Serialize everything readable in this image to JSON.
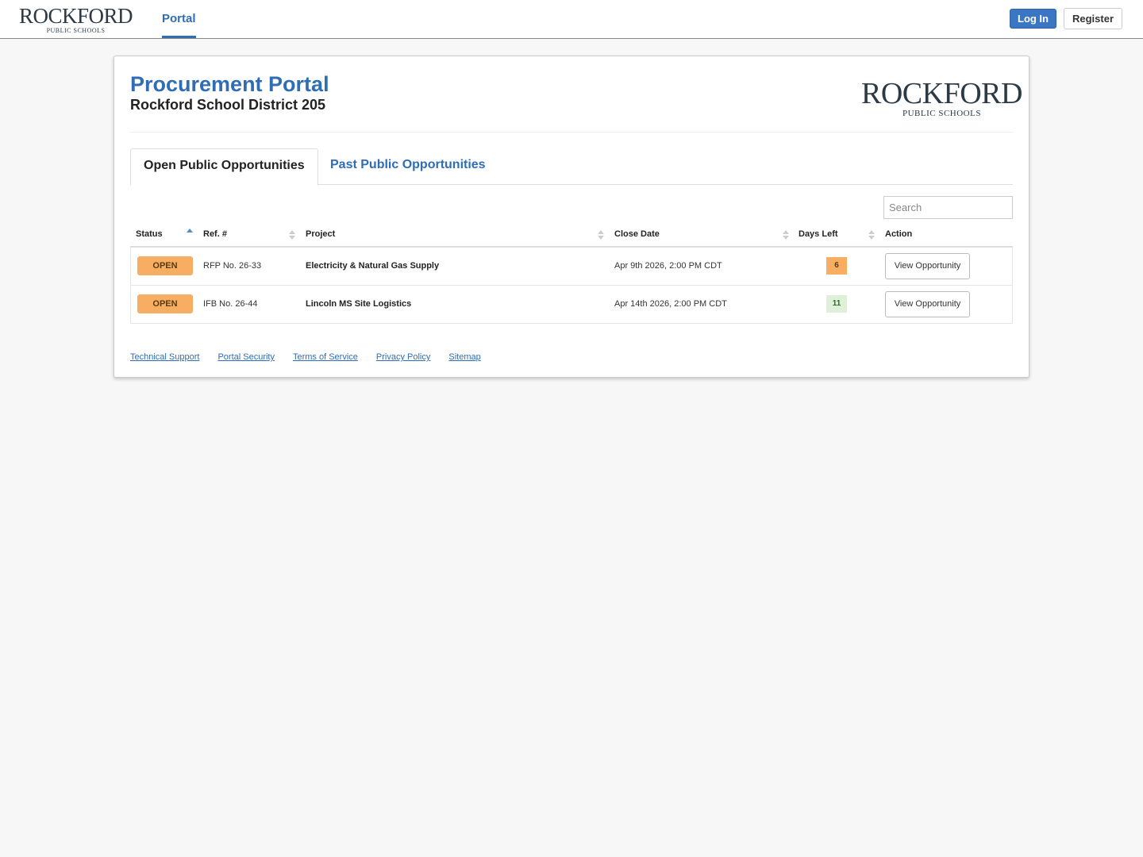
{
  "header": {
    "logo": {
      "name": "ROCKFORD",
      "tagline": "PUBLIC SCHOOLS"
    },
    "nav": [
      {
        "label": "Portal",
        "active": true
      }
    ],
    "login_label": "Log In",
    "register_label": "Register"
  },
  "page": {
    "title": "Procurement Portal",
    "subtitle": "Rockford School District 205",
    "tabs": [
      {
        "label": "Open Public Opportunities",
        "active": true
      },
      {
        "label": "Past Public Opportunities",
        "active": false
      }
    ],
    "search_placeholder": "Search"
  },
  "table": {
    "columns": [
      "Status",
      "Ref. #",
      "Project",
      "Close Date",
      "Days Left",
      "Action"
    ],
    "sorted_column": "Status",
    "rows": [
      {
        "status": "OPEN",
        "ref": "RFP No. 26-33",
        "project": "Electricity & Natural Gas Supply",
        "close_date": "Apr 9th 2026, 2:00 PM CDT",
        "days_left": "6",
        "days_color": "#f7ad62",
        "action": "View Opportunity"
      },
      {
        "status": "OPEN",
        "ref": "IFB No. 26-44",
        "project": "Lincoln MS Site Logistics",
        "close_date": "Apr 14th 2026, 2:00 PM CDT",
        "days_left": "11",
        "days_color": "#dff0d8",
        "action": "View Opportunity"
      }
    ]
  },
  "footer": {
    "links": [
      "Technical Support",
      "Portal Security",
      "Terms of Service",
      "Privacy Policy",
      "Sitemap"
    ]
  },
  "colors": {
    "accent": "#2f6db5",
    "open_badge": "#f7ad62"
  }
}
